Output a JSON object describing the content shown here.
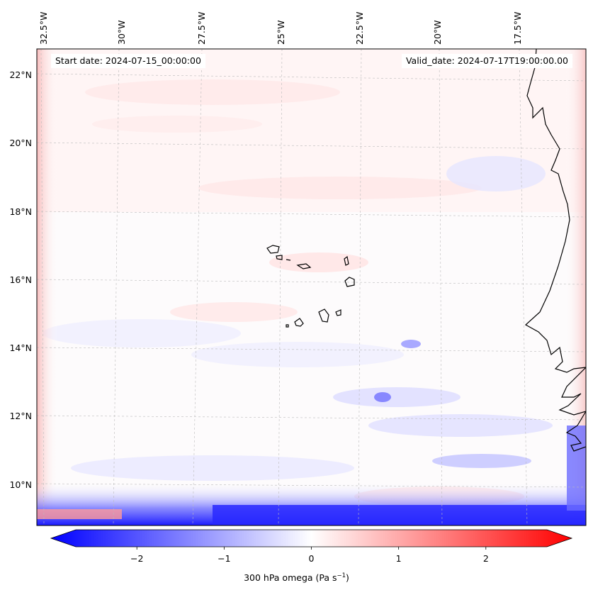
{
  "header": {
    "start_date": "Start date: 2024-07-15_00:00:00",
    "valid_date": "Valid_date: 2024-07-17T19:00:00.00"
  },
  "axes": {
    "lon_labels": [
      "32.5°W",
      "30°W",
      "27.5°W",
      "25°W",
      "22.5°W",
      "20°W",
      "17.5°W"
    ],
    "lat_labels": [
      "22°N",
      "20°N",
      "18°N",
      "16°N",
      "14°N",
      "12°N",
      "10°N"
    ]
  },
  "colorbar": {
    "label_main": "300 hPa omega (Pa s",
    "label_exp": "−1",
    "label_end": ")",
    "ticks": [
      "−2",
      "−1",
      "0",
      "1",
      "2"
    ],
    "tick_values": [
      -2,
      -1,
      0,
      1,
      2
    ],
    "range": [
      -2.7,
      2.7
    ],
    "cmap": "bwr",
    "low_color": "#0000ff",
    "mid_color": "#ffffff",
    "high_color": "#ff0000"
  },
  "map": {
    "region": "Cabo Verde / West African coast",
    "field": "300 hPa omega",
    "coastline_color": "#000000",
    "gridline_color": "#bbbbbb"
  }
}
